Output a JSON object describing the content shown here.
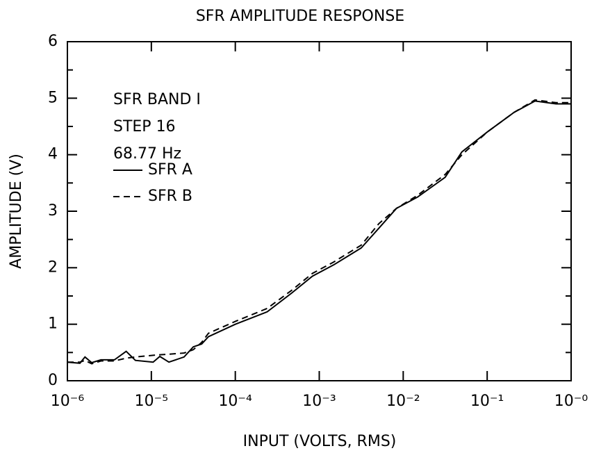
{
  "chart_data": {
    "type": "line",
    "title": "SFR AMPLITUDE RESPONSE",
    "xlabel": "INPUT (VOLTS, RMS)",
    "ylabel": "AMPLITUDE (V)",
    "annotations": [
      "SFR BAND I",
      "STEP 16",
      "68.77 Hz"
    ],
    "xscale": "log",
    "xlim": [
      1e-06,
      1
    ],
    "xticks": [
      {
        "value": 1e-06,
        "label": "10⁻⁶"
      },
      {
        "value": 1e-05,
        "label": "10⁻⁵"
      },
      {
        "value": 0.0001,
        "label": "10⁻⁴"
      },
      {
        "value": 0.001,
        "label": "10⁻³"
      },
      {
        "value": 0.01,
        "label": "10⁻²"
      },
      {
        "value": 0.1,
        "label": "10⁻¹"
      },
      {
        "value": 1,
        "label": "10⁻⁰"
      }
    ],
    "ylim": [
      0,
      6
    ],
    "yticks": [
      0,
      1,
      2,
      3,
      4,
      5,
      6
    ],
    "yminorticks": [
      0.5,
      1.5,
      2.5,
      3.5,
      4.5,
      5.5
    ],
    "grid": false,
    "legend": "upper left",
    "x": [
      1e-06,
      1.41e-06,
      1.62e-06,
      1.95e-06,
      2.51e-06,
      3.63e-06,
      5.01e-06,
      6.46e-06,
      1.05e-05,
      1.26e-05,
      1.62e-05,
      2.45e-05,
      3.16e-05,
      3.98e-05,
      4.79e-05,
      0.0001,
      0.00024,
      0.000468,
      0.00083,
      0.00148,
      0.00316,
      0.00513,
      0.0083,
      0.0148,
      0.0316,
      0.05,
      0.1,
      0.209,
      0.372,
      0.66,
      1
    ],
    "series": [
      {
        "name": "SFR A",
        "color": "#000000",
        "dash": "solid",
        "values": [
          0.33,
          0.31,
          0.42,
          0.32,
          0.37,
          0.37,
          0.52,
          0.36,
          0.33,
          0.43,
          0.33,
          0.42,
          0.6,
          0.65,
          0.78,
          1.0,
          1.22,
          1.55,
          1.85,
          2.05,
          2.35,
          2.7,
          3.05,
          3.25,
          3.6,
          4.05,
          4.4,
          4.75,
          4.95,
          4.9,
          4.9
        ]
      },
      {
        "name": "SFR B",
        "color": "#000000",
        "dash": "dashed",
        "values": [
          0.33,
          0.33,
          0.36,
          0.3,
          0.35,
          0.35,
          0.4,
          0.42,
          0.45,
          0.46,
          0.47,
          0.49,
          0.55,
          0.68,
          0.84,
          1.05,
          1.28,
          1.6,
          1.9,
          2.1,
          2.4,
          2.78,
          3.05,
          3.28,
          3.65,
          4.0,
          4.4,
          4.75,
          4.97,
          4.92,
          4.92
        ]
      }
    ]
  }
}
